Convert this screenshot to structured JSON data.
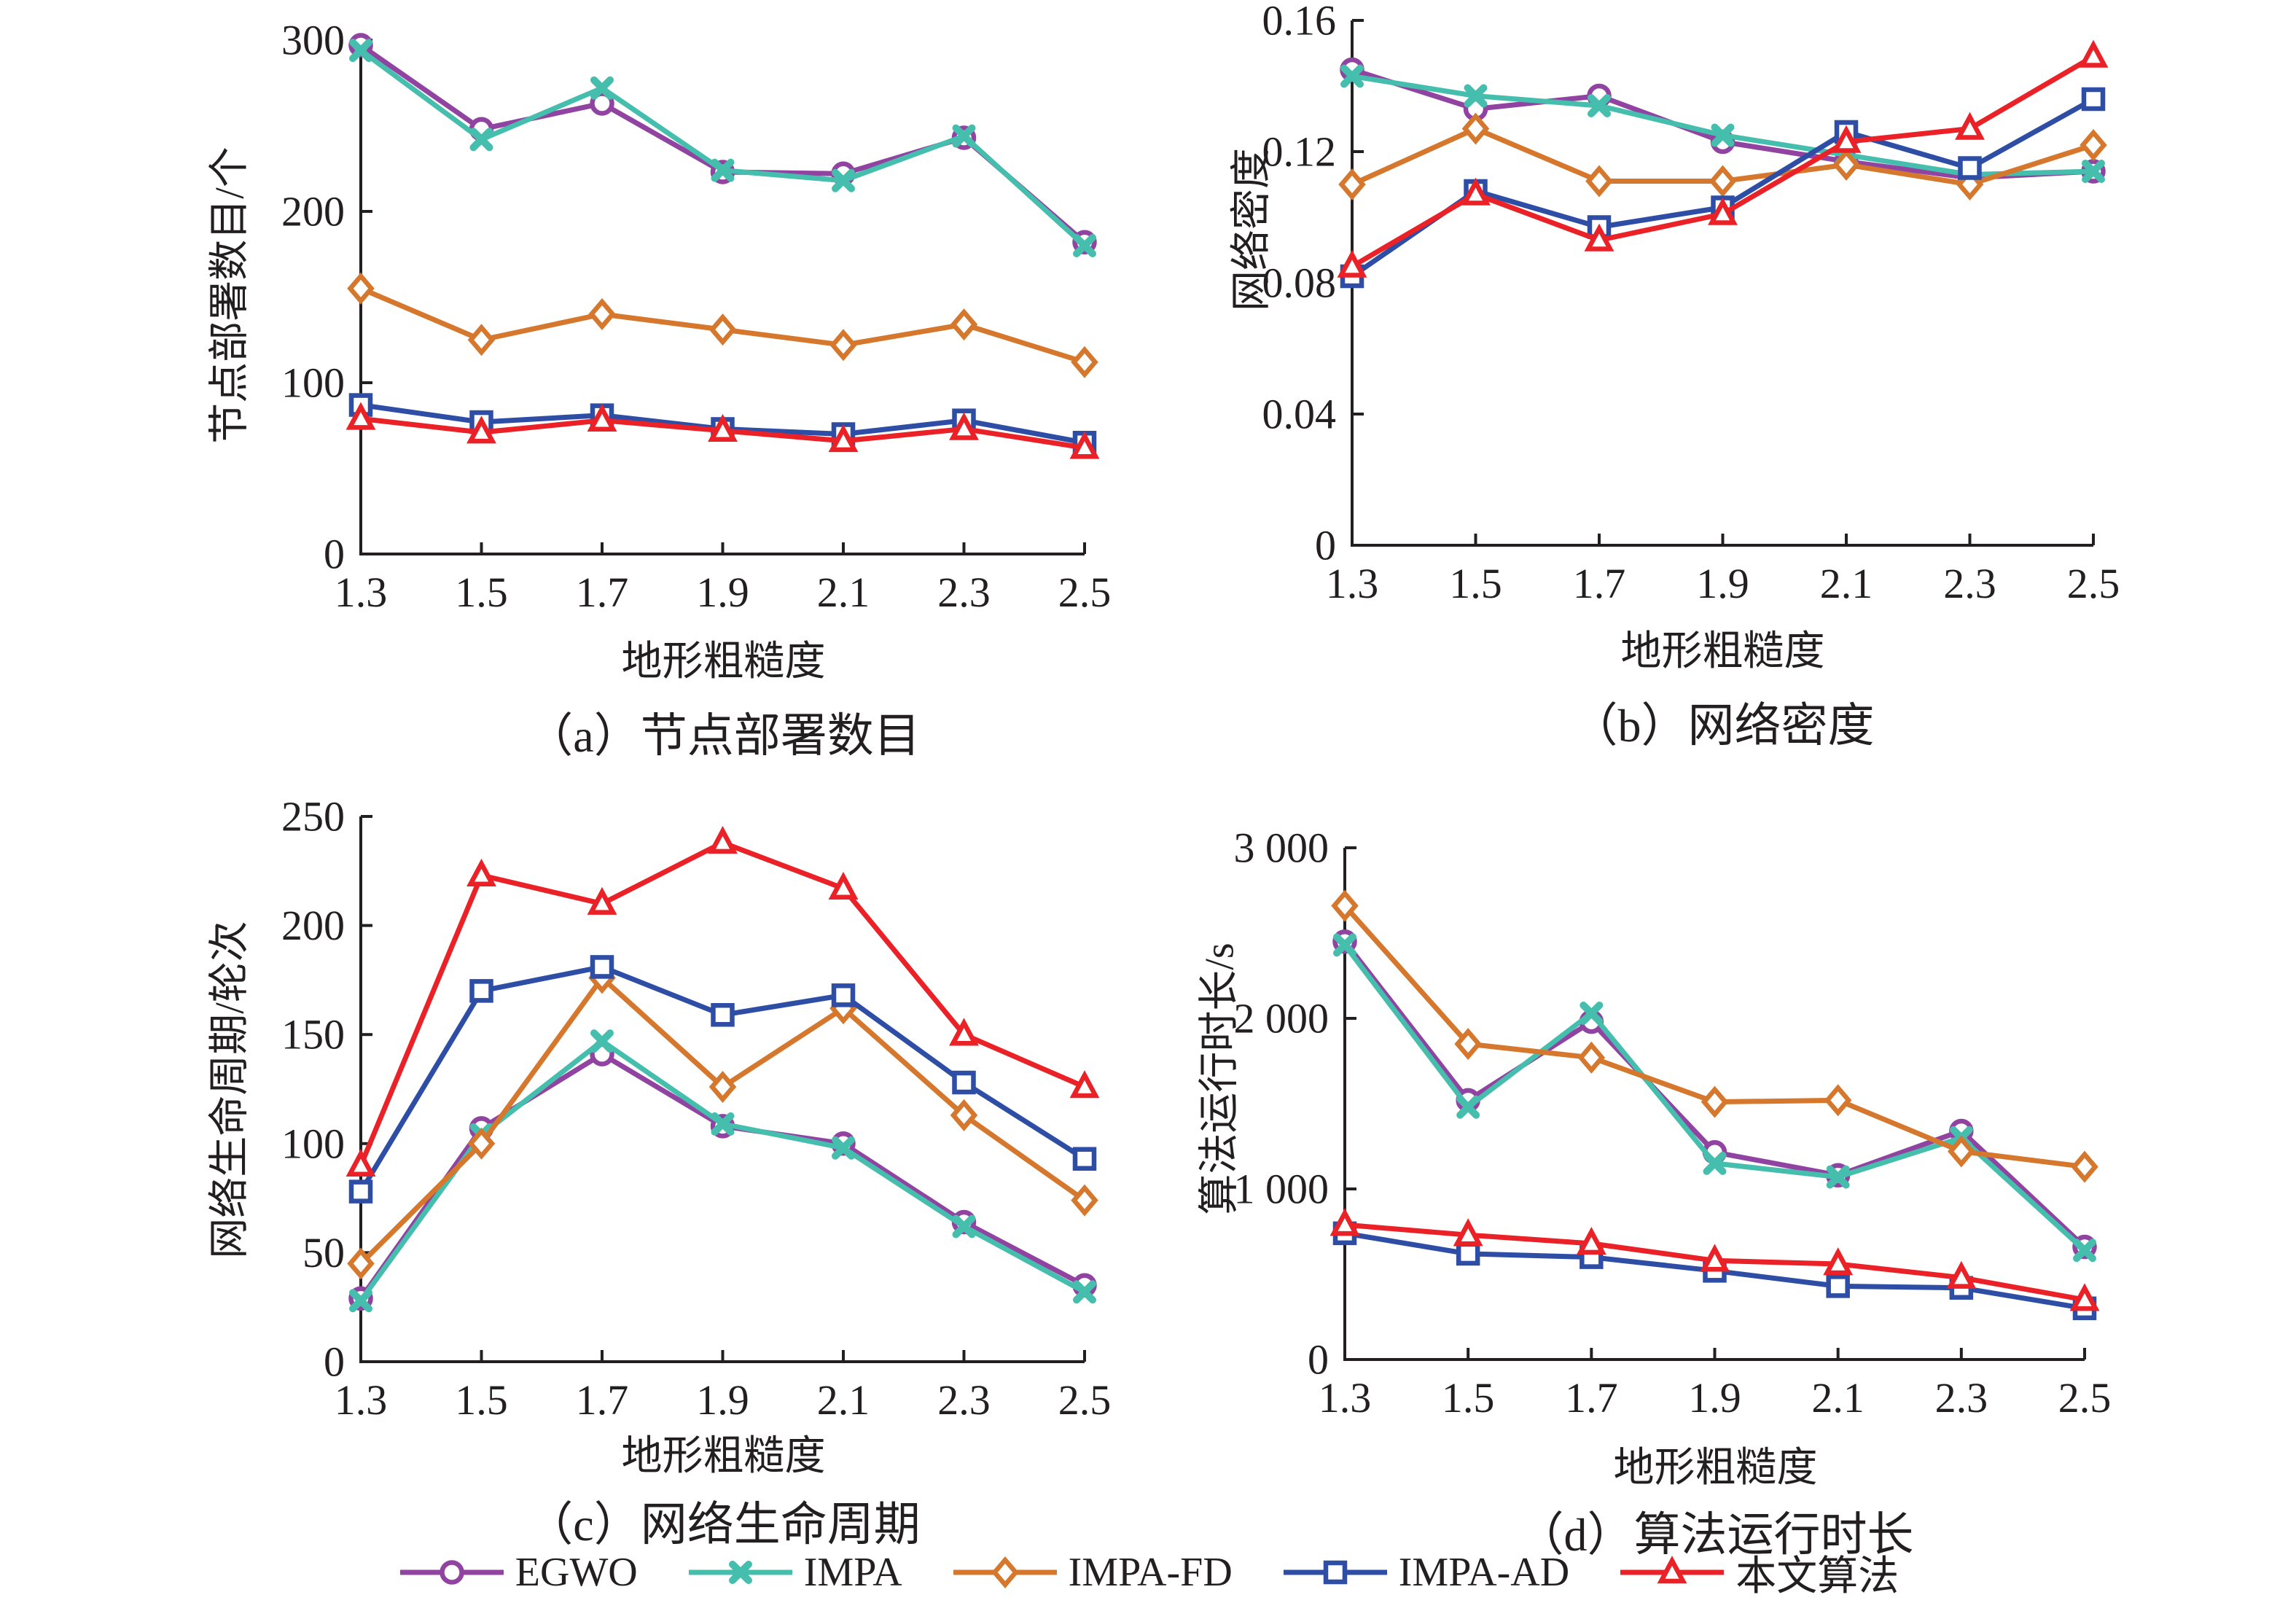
{
  "page": {
    "background": "#ffffff",
    "text_color": "#231F20",
    "axis_color": "#231F20"
  },
  "legend": {
    "position": "bottom-center",
    "items": [
      {
        "label": "EGWO",
        "color": "#9143A1",
        "marker": "circle-marker-icon"
      },
      {
        "label": "IMPA",
        "color": "#45BEAD",
        "marker": "cross-marker-icon"
      },
      {
        "label": "IMPA-FD",
        "color": "#D5782D",
        "marker": "diamond-marker-icon"
      },
      {
        "label": "IMPA-AD",
        "color": "#2E4EA5",
        "marker": "square-marker-icon"
      },
      {
        "label": "本文算法",
        "color": "#EA2227",
        "marker": "triangle-marker-icon"
      }
    ]
  },
  "chart_data": [
    {
      "id": "a",
      "type": "line",
      "grid": false,
      "caption": "（a）节点部署数目",
      "xlabel": "地形粗糙度",
      "ylabel": "节点部署数目/个",
      "x": [
        1.3,
        1.5,
        1.7,
        1.9,
        2.1,
        2.3,
        2.5
      ],
      "xtick_labels": [
        "1.3",
        "1.5",
        "1.7",
        "1.9",
        "2.1",
        "2.3",
        "2.5"
      ],
      "ylim": [
        0,
        300
      ],
      "yticks": [
        0,
        100,
        200,
        300
      ],
      "ytick_labels": [
        "0",
        "100",
        "200",
        "300"
      ],
      "series": [
        {
          "name": "EGWO",
          "marker": "circle",
          "color": "#9143A1",
          "values": [
            297,
            248,
            263,
            223,
            222,
            243,
            182
          ]
        },
        {
          "name": "IMPA",
          "marker": "cross",
          "color": "#45BEAD",
          "values": [
            294,
            242,
            272,
            224,
            218,
            244,
            180
          ]
        },
        {
          "name": "IMPA-FD",
          "marker": "diamond",
          "color": "#D5782D",
          "values": [
            155,
            125,
            140,
            131,
            122,
            134,
            112
          ]
        },
        {
          "name": "IMPA-AD",
          "marker": "square",
          "color": "#2E4EA5",
          "values": [
            87,
            77,
            81,
            73,
            70,
            78,
            65
          ]
        },
        {
          "name": "本文算法",
          "marker": "triangle",
          "color": "#EA2227",
          "values": [
            79,
            71,
            78,
            72,
            66,
            73,
            62
          ]
        }
      ]
    },
    {
      "id": "b",
      "type": "line",
      "grid": false,
      "caption": "（b）网络密度",
      "xlabel": "地形粗糙度",
      "ylabel": "网络密度",
      "x": [
        1.3,
        1.5,
        1.7,
        1.9,
        2.1,
        2.3,
        2.5
      ],
      "xtick_labels": [
        "1.3",
        "1.5",
        "1.7",
        "1.9",
        "2.1",
        "2.3",
        "2.5"
      ],
      "ylim": [
        0,
        0.16
      ],
      "yticks": [
        0,
        0.04,
        0.08,
        0.12,
        0.16
      ],
      "ytick_labels": [
        "0",
        "0.04",
        "0.08",
        "0.12",
        "0.16"
      ],
      "series": [
        {
          "name": "EGWO",
          "marker": "circle",
          "color": "#9143A1",
          "values": [
            0.145,
            0.133,
            0.137,
            0.123,
            0.117,
            0.112,
            0.114
          ]
        },
        {
          "name": "IMPA",
          "marker": "cross",
          "color": "#45BEAD",
          "values": [
            0.143,
            0.137,
            0.134,
            0.125,
            0.119,
            0.113,
            0.114
          ]
        },
        {
          "name": "IMPA-FD",
          "marker": "diamond",
          "color": "#D5782D",
          "values": [
            0.11,
            0.127,
            0.111,
            0.111,
            0.116,
            0.11,
            0.122
          ]
        },
        {
          "name": "IMPA-AD",
          "marker": "square",
          "color": "#2E4EA5",
          "values": [
            0.082,
            0.108,
            0.097,
            0.103,
            0.126,
            0.115,
            0.136
          ]
        },
        {
          "name": "本文算法",
          "marker": "triangle",
          "color": "#EA2227",
          "values": [
            0.085,
            0.107,
            0.093,
            0.101,
            0.123,
            0.127,
            0.149
          ]
        }
      ]
    },
    {
      "id": "c",
      "type": "line",
      "grid": false,
      "caption": "（c）网络生命周期",
      "xlabel": "地形粗糙度",
      "ylabel": "网络生命周期/轮次",
      "x": [
        1.3,
        1.5,
        1.7,
        1.9,
        2.1,
        2.3,
        2.5
      ],
      "xtick_labels": [
        "1.3",
        "1.5",
        "1.7",
        "1.9",
        "2.1",
        "2.3",
        "2.5"
      ],
      "ylim": [
        0,
        250
      ],
      "yticks": [
        0,
        50,
        100,
        150,
        200,
        250
      ],
      "ytick_labels": [
        "0",
        "50",
        "100",
        "150",
        "200",
        "250"
      ],
      "series": [
        {
          "name": "EGWO",
          "marker": "circle",
          "color": "#9143A1",
          "values": [
            29,
            107,
            141,
            108,
            100,
            64,
            35
          ]
        },
        {
          "name": "IMPA",
          "marker": "cross",
          "color": "#45BEAD",
          "values": [
            28,
            104,
            147,
            109,
            98,
            62,
            32
          ]
        },
        {
          "name": "IMPA-FD",
          "marker": "diamond",
          "color": "#D5782D",
          "values": [
            45,
            100,
            176,
            126,
            162,
            113,
            74
          ]
        },
        {
          "name": "IMPA-AD",
          "marker": "square",
          "color": "#2E4EA5",
          "values": [
            78,
            170,
            181,
            159,
            168,
            128,
            93
          ]
        },
        {
          "name": "本文算法",
          "marker": "triangle",
          "color": "#EA2227",
          "values": [
            90,
            223,
            210,
            238,
            217,
            150,
            126
          ]
        }
      ]
    },
    {
      "id": "d",
      "type": "line",
      "grid": false,
      "caption": "（d）算法运行时长",
      "xlabel": "地形粗糙度",
      "ylabel": "算法运行时长/s",
      "x": [
        1.3,
        1.5,
        1.7,
        1.9,
        2.1,
        2.3,
        2.5
      ],
      "xtick_labels": [
        "1.3",
        "1.5",
        "1.7",
        "1.9",
        "2.1",
        "2.3",
        "2.5"
      ],
      "ylim": [
        0,
        3000
      ],
      "yticks": [
        0,
        1000,
        2000,
        3000
      ],
      "ytick_labels": [
        "0",
        "1 000",
        "2 000",
        "3 000"
      ],
      "series": [
        {
          "name": "EGWO",
          "marker": "circle",
          "color": "#9143A1",
          "values": [
            2450,
            1520,
            1980,
            1215,
            1080,
            1340,
            660
          ]
        },
        {
          "name": "IMPA",
          "marker": "cross",
          "color": "#45BEAD",
          "values": [
            2430,
            1480,
            2030,
            1150,
            1070,
            1300,
            640
          ]
        },
        {
          "name": "IMPA-FD",
          "marker": "diamond",
          "color": "#D5782D",
          "values": [
            2660,
            1850,
            1770,
            1510,
            1520,
            1220,
            1130
          ]
        },
        {
          "name": "IMPA-AD",
          "marker": "square",
          "color": "#2E4EA5",
          "values": [
            740,
            620,
            600,
            520,
            430,
            420,
            300
          ]
        },
        {
          "name": "本文算法",
          "marker": "triangle",
          "color": "#EA2227",
          "values": [
            790,
            730,
            680,
            580,
            560,
            480,
            350
          ]
        }
      ]
    }
  ]
}
